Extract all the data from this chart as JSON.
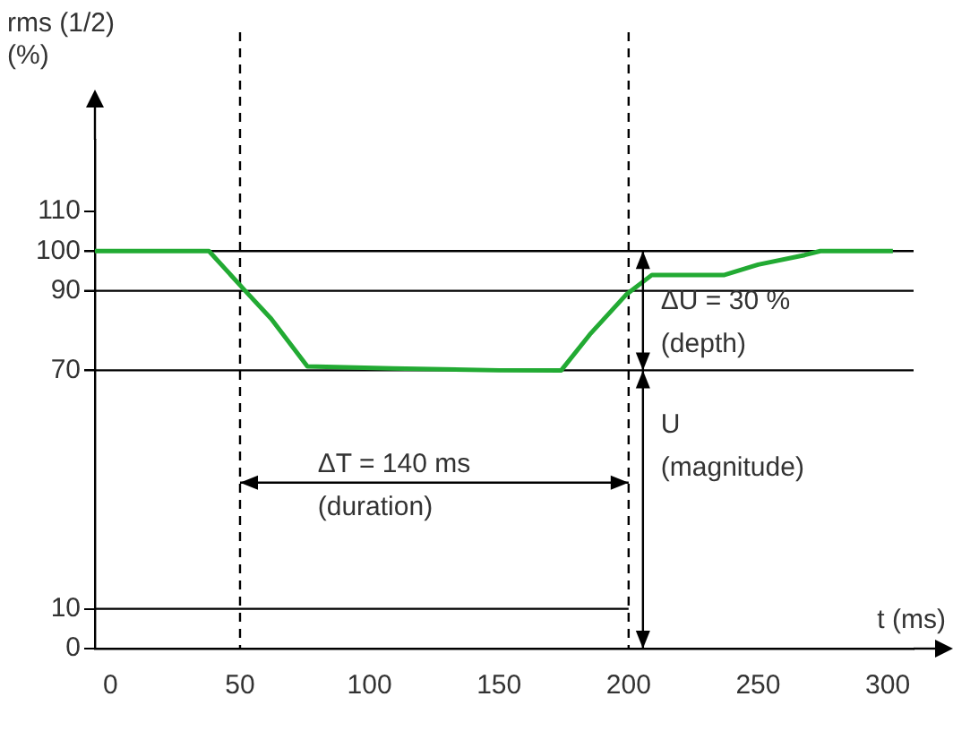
{
  "chart_data": {
    "type": "line",
    "xlabel": "t (ms)",
    "ylabel": "rms (1/2)\n(%)",
    "xlim": [
      -6,
      310
    ],
    "ylim": [
      0,
      128
    ],
    "xticks": [
      0,
      50,
      100,
      150,
      200,
      250,
      300
    ],
    "yticks": [
      0,
      10,
      70,
      90,
      100,
      110
    ],
    "grid": false,
    "legend": false,
    "marker": "none",
    "line_style": "solid",
    "series": [
      {
        "color": "#22aa33",
        "x": [
          -6,
          38,
          52,
          62,
          76,
          109,
          150,
          174,
          185,
          199,
          209,
          216,
          237,
          250,
          268,
          274,
          302
        ],
        "values": [
          100,
          100,
          90,
          83,
          71,
          70.5,
          70,
          70,
          79,
          89,
          94,
          94,
          94,
          96.6,
          99,
          100,
          100
        ]
      },
      {
        "color": "#000000",
        "x": [
          -6,
          200
        ],
        "values": [
          10,
          10
        ]
      }
    ],
    "ref_lines": [
      {
        "axis": "y",
        "value": 100,
        "color": "#000000",
        "line_style": "solid"
      },
      {
        "axis": "y",
        "value": 90,
        "color": "#000000",
        "line_style": "solid"
      },
      {
        "axis": "y",
        "value": 70,
        "color": "#000000",
        "line_style": "solid"
      },
      {
        "axis": "x",
        "value": 50,
        "color": "#000000",
        "line_style": "dashed"
      },
      {
        "axis": "x",
        "value": 200,
        "color": "#000000",
        "line_style": "dashed"
      }
    ],
    "annotations": [
      "ΔU = 30 %\n(depth)",
      "U\n(magnitude)",
      "ΔT = 140 ms\n(duration)"
    ]
  }
}
